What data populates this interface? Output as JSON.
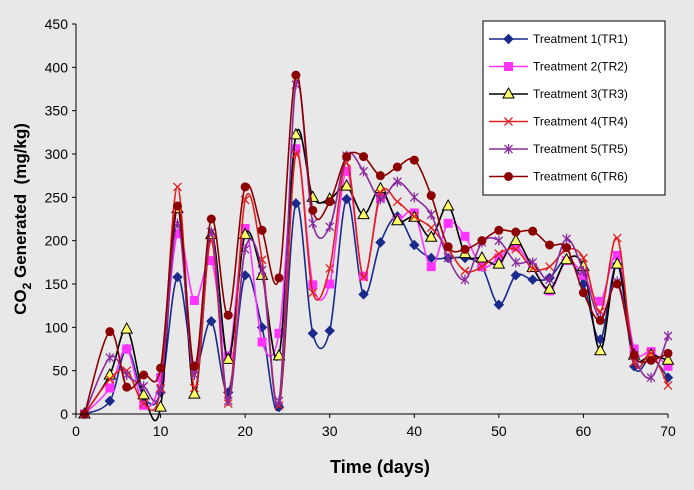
{
  "chart_data": {
    "type": "line",
    "title": "",
    "xlabel": "Time (days)",
    "ylabel_parts": {
      "pre": "CO",
      "sub": "2",
      "post": " Generated  (mg/kg)"
    },
    "xlim": [
      0,
      70
    ],
    "ylim": [
      0,
      450
    ],
    "xticks": [
      0,
      10,
      20,
      30,
      40,
      50,
      60,
      70
    ],
    "yticks": [
      0,
      50,
      100,
      150,
      200,
      250,
      300,
      350,
      400,
      450
    ],
    "grid": false,
    "legend_position": "top-right",
    "x": [
      1,
      4,
      6,
      8,
      10,
      12,
      14,
      16,
      18,
      20,
      22,
      24,
      26,
      28,
      30,
      32,
      34,
      36,
      38,
      40,
      42,
      44,
      46,
      48,
      50,
      52,
      54,
      56,
      58,
      60,
      62,
      64,
      66,
      68,
      70
    ],
    "series": [
      {
        "name": "Treatment 1(TR1)",
        "color": "#1a2a8c",
        "marker": "diamond",
        "values": [
          0,
          15,
          75,
          20,
          25,
          158,
          55,
          107,
          25,
          160,
          100,
          8,
          243,
          93,
          96,
          248,
          138,
          198,
          228,
          195,
          180,
          180,
          180,
          170,
          126,
          160,
          155,
          157,
          178,
          150,
          86,
          173,
          55,
          65,
          42
        ]
      },
      {
        "name": "Treatment 2(TR2)",
        "color": "#ff33ff",
        "marker": "square",
        "values": [
          0,
          30,
          75,
          10,
          42,
          208,
          131,
          177,
          67,
          214,
          83,
          93,
          306,
          149,
          150,
          280,
          159,
          250,
          225,
          232,
          170,
          220,
          205,
          170,
          180,
          193,
          169,
          142,
          177,
          160,
          130,
          183,
          75,
          72,
          55
        ]
      },
      {
        "name": "Treatment 3(TR3)",
        "color": "#000000",
        "marker": "triangle",
        "values": [
          0,
          45,
          98,
          22,
          8,
          237,
          23,
          207,
          63,
          207,
          160,
          67,
          322,
          250,
          248,
          263,
          230,
          260,
          223,
          227,
          204,
          240,
          185,
          180,
          173,
          200,
          169,
          144,
          178,
          170,
          73,
          173,
          68,
          68,
          62
        ]
      },
      {
        "name": "Treatment 4(TR4)",
        "color": "#e02020",
        "marker": "x",
        "values": [
          0,
          40,
          50,
          12,
          30,
          262,
          30,
          200,
          12,
          247,
          178,
          10,
          300,
          140,
          168,
          290,
          158,
          255,
          245,
          228,
          215,
          190,
          165,
          170,
          185,
          190,
          168,
          170,
          190,
          180,
          118,
          203,
          60,
          70,
          33
        ]
      },
      {
        "name": "Treatment 5(TR5)",
        "color": "#8b2a9e",
        "marker": "star",
        "values": [
          0,
          65,
          45,
          32,
          28,
          220,
          45,
          210,
          15,
          190,
          166,
          15,
          380,
          220,
          216,
          298,
          280,
          248,
          268,
          250,
          230,
          180,
          155,
          198,
          200,
          175,
          175,
          155,
          202,
          165,
          111,
          153,
          68,
          42,
          90
        ]
      },
      {
        "name": "Treatment 6(TR6)",
        "color": "#8b0000",
        "marker": "circle",
        "values": [
          0,
          95,
          31,
          45,
          53,
          240,
          55,
          225,
          114,
          262,
          212,
          157,
          391,
          235,
          245,
          297,
          297,
          275,
          285,
          293,
          252,
          193,
          190,
          200,
          212,
          210,
          211,
          195,
          192,
          140,
          108,
          150,
          68,
          62,
          70
        ]
      }
    ]
  }
}
